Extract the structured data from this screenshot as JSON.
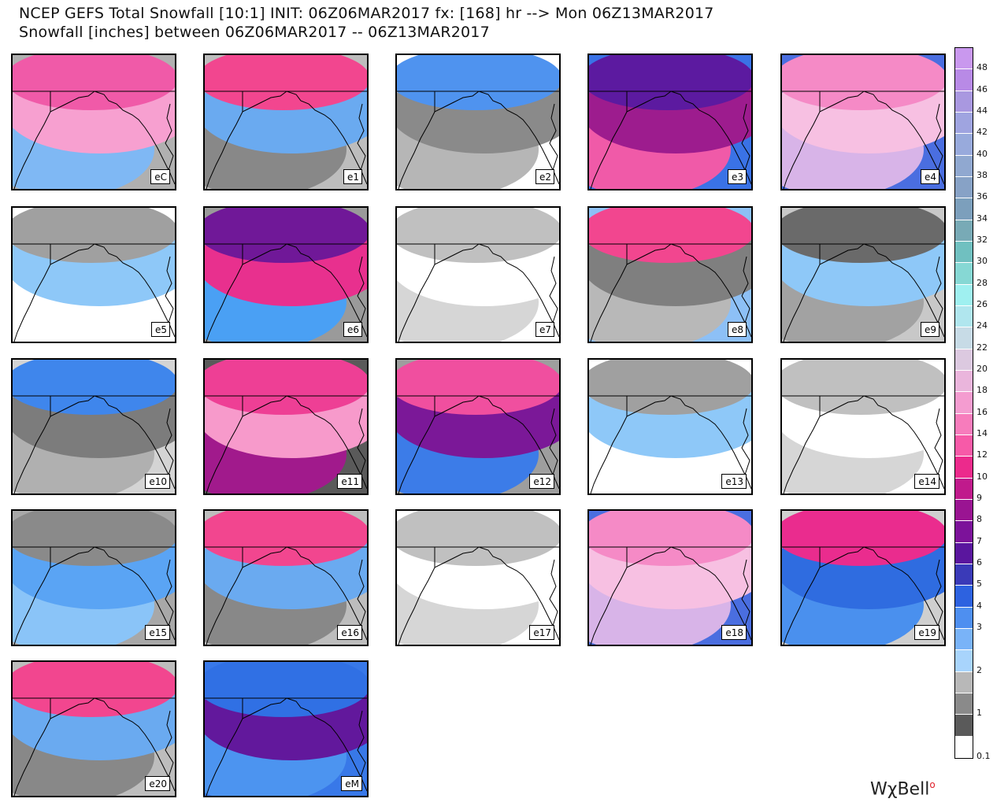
{
  "header": {
    "line1": "NCEP GEFS Total Snowfall [10:1] INIT: 06Z06MAR2017 fx: [168] hr --> Mon 06Z13MAR2017",
    "line2": "Snowfall [inches] between 06Z06MAR2017 -- 06Z13MAR2017"
  },
  "panels": [
    {
      "label": "eC",
      "style": "pink"
    },
    {
      "label": "e1",
      "style": "pinktopgray"
    },
    {
      "label": "e2",
      "style": "bluegray"
    },
    {
      "label": "e3",
      "style": "purple"
    },
    {
      "label": "e4",
      "style": "lightpink"
    },
    {
      "label": "e5",
      "style": "whitegray"
    },
    {
      "label": "e6",
      "style": "purplemid"
    },
    {
      "label": "e7",
      "style": "white"
    },
    {
      "label": "e8",
      "style": "graymix"
    },
    {
      "label": "e9",
      "style": "graymix2"
    },
    {
      "label": "e10",
      "style": "bluegray2"
    },
    {
      "label": "e11",
      "style": "pink2"
    },
    {
      "label": "e12",
      "style": "purple2"
    },
    {
      "label": "e13",
      "style": "whitegray"
    },
    {
      "label": "e14",
      "style": "white"
    },
    {
      "label": "e15",
      "style": "blue"
    },
    {
      "label": "e16",
      "style": "pinktopgray"
    },
    {
      "label": "e17",
      "style": "white"
    },
    {
      "label": "e18",
      "style": "lightpink"
    },
    {
      "label": "e19",
      "style": "bluepink"
    },
    {
      "label": "e20",
      "style": "pinktopgray"
    },
    {
      "label": "eM",
      "style": "bluepurple"
    }
  ],
  "legend": {
    "ticks": [
      "48",
      "46",
      "44",
      "42",
      "40",
      "38",
      "36",
      "34",
      "32",
      "30",
      "28",
      "26",
      "24",
      "22",
      "20",
      "18",
      "16",
      "14",
      "12",
      "10",
      "9",
      "8",
      "7",
      "6",
      "5",
      "4",
      "3",
      "2",
      "1",
      "0.1"
    ],
    "colors": [
      "#c998ee",
      "#b88ae6",
      "#a998e0",
      "#9fa4e0",
      "#98aadc",
      "#90a8d0",
      "#87a2c6",
      "#7c9fbc",
      "#78aab6",
      "#70c0c0",
      "#86d8d4",
      "#9ff0f0",
      "#b0e6ee",
      "#c7dbe6",
      "#dcc9e0",
      "#eab5dc",
      "#f49cd0",
      "#f77cbc",
      "#f75aa8",
      "#ec2a8c",
      "#c01a8c",
      "#9a1492",
      "#7c129a",
      "#5a169e",
      "#3a3ab8",
      "#2d62e0",
      "#4e8ff0",
      "#79b3f8",
      "#a8d4fc",
      "#b8b8b8",
      "#8a8a8a",
      "#5a5a5a",
      "#ffffff"
    ]
  },
  "branding": {
    "text": "WχBell"
  }
}
